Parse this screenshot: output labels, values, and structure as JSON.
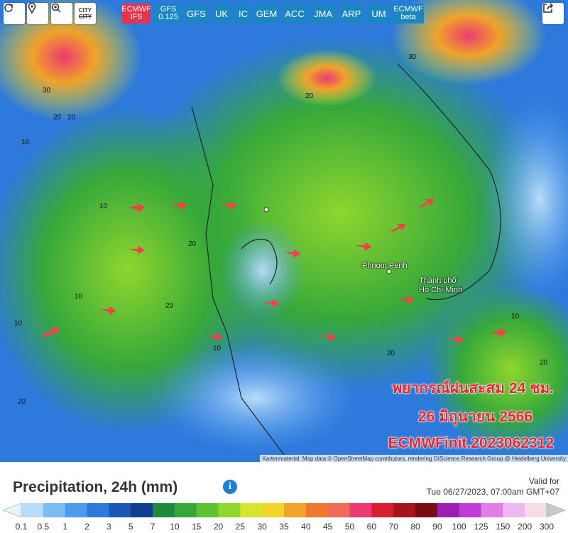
{
  "toolbar": {
    "city": [
      "CITY",
      "CITY"
    ],
    "models": [
      [
        "ECMWF",
        "IFS"
      ],
      [
        "GFS",
        "0.125"
      ],
      [
        "GFS"
      ],
      [
        "UK"
      ],
      [
        "IC"
      ],
      [
        "GEM"
      ],
      [
        "ACC"
      ],
      [
        "JMA"
      ],
      [
        "ARP"
      ],
      [
        "UM"
      ],
      [
        "ECMWF",
        "beta"
      ]
    ]
  },
  "map": {
    "places": [
      "Phnom Penh",
      "Thành phố",
      "Hồ Chí Minh"
    ],
    "contour_labels": [
      "30",
      "20",
      "10",
      "20",
      "10",
      "20",
      "10",
      "20",
      "10",
      "20",
      "30",
      "20",
      "10",
      "20",
      "10",
      "20"
    ],
    "overlay": [
      "พยากรณ์ฝนสะสม 24 ชม.",
      "26 มิถุนายน 2566",
      "ECMWFinit.2023062312"
    ],
    "attribution": "Kartenmaterial: Map data © OpenStreetMap contributors, rendering GIScience Research Group @ Heidelberg University"
  },
  "legend": {
    "title": "Precipitation, 24h (mm)",
    "info": "i",
    "valid_label": "Valid for",
    "valid_time": "Tue 06/27/2023, 07:00am GMT+07",
    "labels": [
      "0.1",
      "0.5",
      "1",
      "2",
      "3",
      "5",
      "7",
      "10",
      "15",
      "20",
      "25",
      "30",
      "35",
      "40",
      "45",
      "50",
      "60",
      "70",
      "80",
      "90",
      "100",
      "125",
      "150",
      "200",
      "300"
    ],
    "colors": [
      "#e6f4fc",
      "#b9dcfa",
      "#7cbcf4",
      "#4b9ced",
      "#2d79dc",
      "#1b57b8",
      "#123c8c",
      "#1d8a3d",
      "#36a83a",
      "#5ec234",
      "#8fd62e",
      "#d5e62c",
      "#f2d52a",
      "#f0a22a",
      "#ee7830",
      "#f06a58",
      "#ec3b70",
      "#d91e2e",
      "#a7141c",
      "#7a0d12",
      "#9b1fb0",
      "#c23bd8",
      "#e07ee6",
      "#eeb7ef",
      "#f4dde9",
      "#c8c8c8"
    ]
  }
}
